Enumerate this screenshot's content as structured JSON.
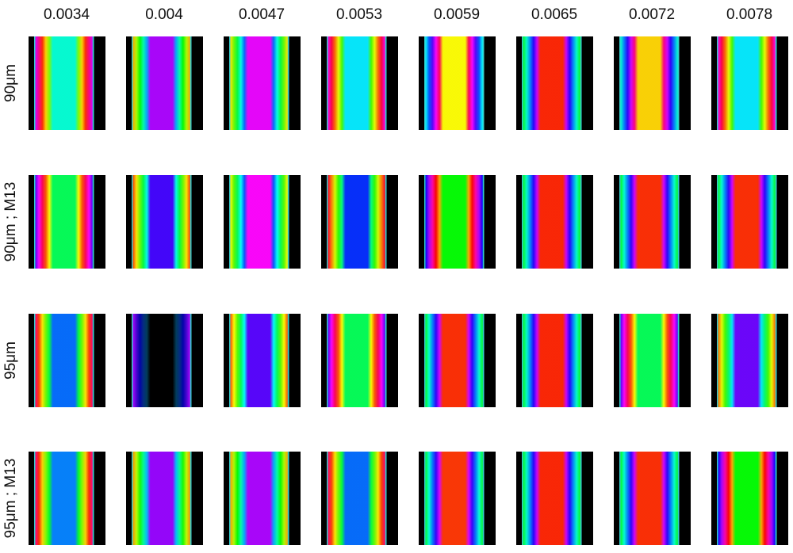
{
  "columns": [
    "0.0034",
    "0.004",
    "0.0047",
    "0.0053",
    "0.0059",
    "0.0065",
    "0.0072",
    "0.0078"
  ],
  "rows": [
    "90μm",
    "90μm ; M13",
    "95μm",
    "95μm ; M13"
  ]
}
